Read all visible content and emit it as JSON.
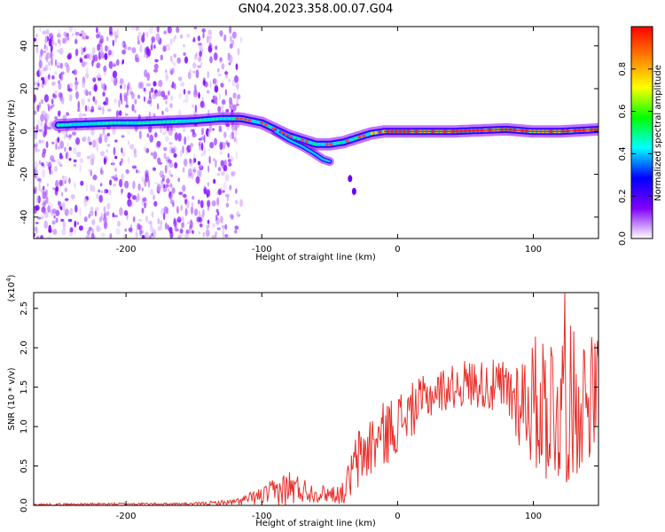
{
  "title": "GN04.2023.358.00.07.G04",
  "chart_data": [
    {
      "type": "heatmap",
      "xlabel": "Height of straight line (km)",
      "ylabel": "Frequency (Hz)",
      "xlim": [
        -268,
        148
      ],
      "ylim": [
        -50,
        49
      ],
      "xticks": [
        -200,
        -100,
        0,
        100
      ],
      "xtick_labels": [
        "-200",
        "-100",
        "0",
        "100"
      ],
      "yticks": [
        -40,
        -20,
        0,
        20,
        40
      ],
      "ytick_labels": [
        "-40",
        "-20",
        "0",
        "20",
        "40"
      ],
      "colorbar": {
        "label": "Normalized spectral amplitude",
        "range": [
          0,
          1
        ],
        "ticks": [
          0.0,
          0.2,
          0.4,
          0.6,
          0.8
        ],
        "tick_labels": [
          "0.0",
          "0.2",
          "0.4",
          "0.6",
          "0.8"
        ],
        "colors": [
          "#ffffff",
          "#8000ff",
          "#0000ff",
          "#00ffff",
          "#00ff00",
          "#ffff00",
          "#ff8000",
          "#ff0000"
        ]
      },
      "ridge": {
        "x": [
          -250,
          -230,
          -210,
          -190,
          -170,
          -150,
          -130,
          -115,
          -100,
          -90,
          -80,
          -70,
          -60,
          -50,
          -40,
          -30,
          -20,
          -10,
          0,
          20,
          40,
          60,
          80,
          100,
          120,
          148
        ],
        "y": [
          3,
          3.5,
          4,
          4,
          4.5,
          5,
          6,
          6,
          4,
          1,
          -2,
          -4,
          -6,
          -6,
          -5,
          -3,
          -1,
          0,
          0,
          0,
          0,
          0.5,
          1,
          0,
          0,
          1
        ]
      },
      "branch": {
        "x": [
          -90,
          -80,
          -70,
          -62,
          -55,
          -50
        ],
        "y": [
          0,
          -4,
          -7,
          -10,
          -13,
          -14
        ]
      },
      "isolated_features": [
        {
          "x": -35,
          "y": -22
        },
        {
          "x": -32,
          "y": -28
        }
      ],
      "noise_region": {
        "x": [
          -268,
          -130
        ],
        "y": [
          -50,
          49
        ]
      }
    },
    {
      "type": "line",
      "xlabel": "Height of straight line (km)",
      "ylabel": "SNR (10 * v/v)",
      "scale_label": "(x10",
      "scale_exponent": "4",
      "scale_label_suffix": ")",
      "xlim": [
        -268,
        148
      ],
      "ylim": [
        0,
        2.7
      ],
      "xticks": [
        -200,
        -100,
        0,
        100
      ],
      "xtick_labels": [
        "-200",
        "-100",
        "0",
        "100"
      ],
      "yticks": [
        0.0,
        0.5,
        1.0,
        1.5,
        2.0,
        2.5
      ],
      "ytick_labels": [
        "0.0",
        "0.5",
        "1.0",
        "1.5",
        "2.0",
        "2.5"
      ],
      "color": "#e8312a",
      "envelope": {
        "x": [
          -268,
          -200,
          -150,
          -120,
          -100,
          -80,
          -70,
          -60,
          -50,
          -40,
          -30,
          -20,
          -10,
          0,
          10,
          20,
          30,
          40,
          50,
          60,
          70,
          80,
          90,
          100,
          110,
          120,
          130,
          140,
          148
        ],
        "mean": [
          0.01,
          0.02,
          0.02,
          0.04,
          0.12,
          0.22,
          0.2,
          0.15,
          0.15,
          0.15,
          0.55,
          0.75,
          0.9,
          1.05,
          1.2,
          1.35,
          1.45,
          1.5,
          1.55,
          1.55,
          1.5,
          1.45,
          1.35,
          1.3,
          1.3,
          1.25,
          1.3,
          1.4,
          1.45
        ],
        "spread": [
          0.01,
          0.01,
          0.01,
          0.03,
          0.08,
          0.18,
          0.12,
          0.08,
          0.08,
          0.1,
          0.3,
          0.3,
          0.3,
          0.28,
          0.25,
          0.22,
          0.2,
          0.2,
          0.22,
          0.22,
          0.25,
          0.3,
          0.45,
          0.6,
          0.75,
          0.75,
          0.7,
          0.6,
          0.5
        ]
      },
      "peak": {
        "x": 123,
        "y": 2.7
      }
    }
  ]
}
